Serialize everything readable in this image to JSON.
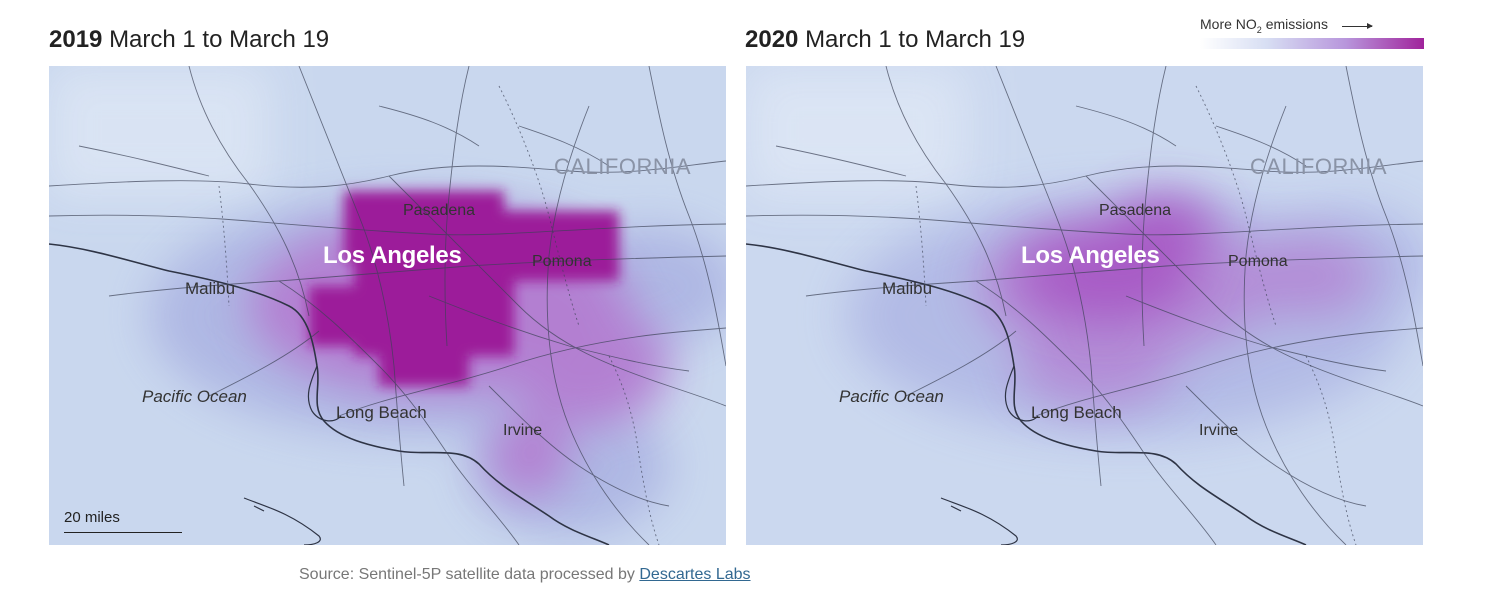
{
  "panels": [
    {
      "year": "2019",
      "period": "March 1 to March 19",
      "labels": {
        "state": "CALIFORNIA",
        "pasadena": "Pasadena",
        "los_angeles": "Los Angeles",
        "pomona": "Pomona",
        "malibu": "Malibu",
        "pacific": "Pacific Ocean",
        "long_beach": "Long Beach",
        "irvine": "Irvine"
      },
      "scale_label": "20 miles"
    },
    {
      "year": "2020",
      "period": "March 1 to March 19",
      "labels": {
        "state": "CALIFORNIA",
        "pasadena": "Pasadena",
        "los_angeles": "Los Angeles",
        "pomona": "Pomona",
        "malibu": "Malibu",
        "pacific": "Pacific Ocean",
        "long_beach": "Long Beach",
        "irvine": "Irvine"
      }
    }
  ],
  "legend": {
    "label_prefix": "More NO",
    "label_sub": "2",
    "label_suffix": " emissions",
    "colors": [
      "#ffffff",
      "#d7def3",
      "#b896dc",
      "#a0239b"
    ]
  },
  "source": {
    "prefix": "Source: Sentinel-5P satellite data processed by ",
    "link_text": "Descartes Labs"
  },
  "colors": {
    "base": "#c9d7ee",
    "high": "#9c1c9a",
    "mid": "#b47ad0",
    "low": "#aab2e2"
  }
}
